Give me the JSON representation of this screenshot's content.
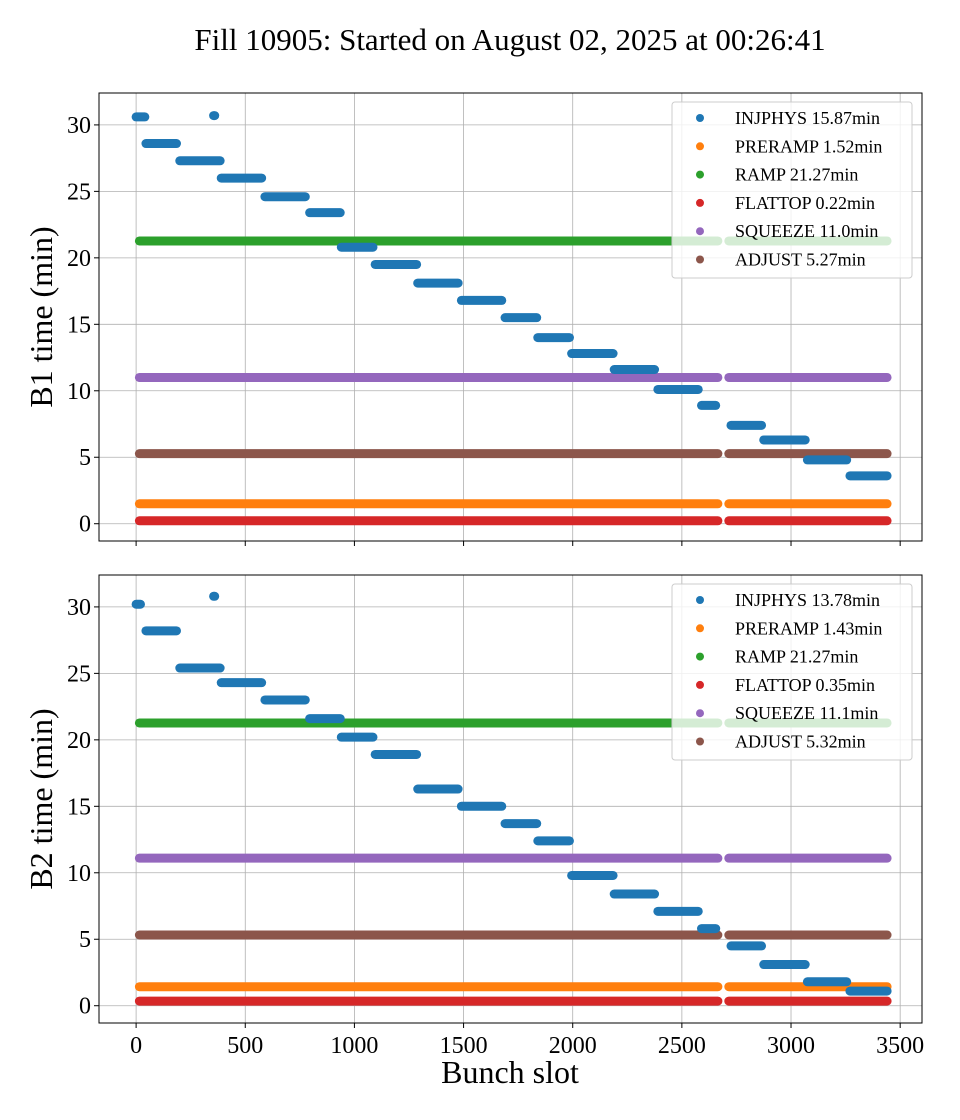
{
  "figure": {
    "title": "Fill 10905: Started on August 02, 2025 at 00:26:41",
    "xlabel": "Bunch slot"
  },
  "colors": {
    "INJPHYS": "#1f77b4",
    "PRERAMP": "#ff7f0e",
    "RAMP": "#2ca02c",
    "FLATTOP": "#d62728",
    "SQUEEZE": "#9467bd",
    "ADJUST": "#8c564b"
  },
  "chart_data": [
    {
      "type": "scatter",
      "ylabel": "B1 time (min)",
      "xlim": [
        -170,
        3600
      ],
      "ylim": [
        -1.3,
        32.4
      ],
      "xticks": [
        0,
        500,
        1000,
        1500,
        2000,
        2500,
        3000,
        3500
      ],
      "yticks": [
        0,
        5,
        10,
        15,
        20,
        25,
        30
      ],
      "grid": true,
      "legend_position": "top-right",
      "gaps": [
        [
          2665,
          2715
        ]
      ],
      "series": [
        {
          "name": "INJPHYS 15.87min",
          "key": "INJPHYS",
          "segments": [
            {
              "x0": 0,
              "x1": 40,
              "y": 30.6
            },
            {
              "x0": 355,
              "x1": 360,
              "y": 30.7
            },
            {
              "x0": 45,
              "x1": 185,
              "y": 28.6
            },
            {
              "x0": 200,
              "x1": 385,
              "y": 27.3
            },
            {
              "x0": 390,
              "x1": 575,
              "y": 26.0
            },
            {
              "x0": 590,
              "x1": 775,
              "y": 24.6
            },
            {
              "x0": 795,
              "x1": 935,
              "y": 23.4
            },
            {
              "x0": 940,
              "x1": 1085,
              "y": 20.8
            },
            {
              "x0": 1095,
              "x1": 1285,
              "y": 19.5
            },
            {
              "x0": 1290,
              "x1": 1475,
              "y": 18.1
            },
            {
              "x0": 1490,
              "x1": 1675,
              "y": 16.8
            },
            {
              "x0": 1690,
              "x1": 1835,
              "y": 15.5
            },
            {
              "x0": 1840,
              "x1": 1985,
              "y": 14.0
            },
            {
              "x0": 1995,
              "x1": 2185,
              "y": 12.8
            },
            {
              "x0": 2190,
              "x1": 2375,
              "y": 11.6
            },
            {
              "x0": 2390,
              "x1": 2575,
              "y": 10.1
            },
            {
              "x0": 2590,
              "x1": 2655,
              "y": 8.9
            },
            {
              "x0": 2725,
              "x1": 2865,
              "y": 7.4
            },
            {
              "x0": 2875,
              "x1": 3065,
              "y": 6.3
            },
            {
              "x0": 3075,
              "x1": 3255,
              "y": 4.8
            },
            {
              "x0": 3270,
              "x1": 3440,
              "y": 3.6
            }
          ]
        },
        {
          "name": "PRERAMP 1.52min",
          "key": "PRERAMP",
          "y": 1.5
        },
        {
          "name": "RAMP 21.27min",
          "key": "RAMP",
          "y": 21.27
        },
        {
          "name": "FLATTOP 0.22min",
          "key": "FLATTOP",
          "y": 0.22
        },
        {
          "name": "SQUEEZE 11.0min",
          "key": "SQUEEZE",
          "y": 11.0
        },
        {
          "name": "ADJUST 5.27min",
          "key": "ADJUST",
          "y": 5.27
        }
      ]
    },
    {
      "type": "scatter",
      "ylabel": "B2 time (min)",
      "xlim": [
        -170,
        3600
      ],
      "ylim": [
        -1.3,
        32.4
      ],
      "xticks": [
        0,
        500,
        1000,
        1500,
        2000,
        2500,
        3000,
        3500
      ],
      "xticklabels": [
        "0",
        "500",
        "1000",
        "1500",
        "2000",
        "2500",
        "3000",
        "3500"
      ],
      "yticks": [
        0,
        5,
        10,
        15,
        20,
        25,
        30
      ],
      "grid": true,
      "legend_position": "top-right",
      "gaps": [
        [
          2665,
          2715
        ]
      ],
      "series": [
        {
          "name": "INJPHYS 13.78min",
          "key": "INJPHYS",
          "segments": [
            {
              "x0": 0,
              "x1": 20,
              "y": 30.2
            },
            {
              "x0": 355,
              "x1": 360,
              "y": 30.8
            },
            {
              "x0": 45,
              "x1": 185,
              "y": 28.2
            },
            {
              "x0": 200,
              "x1": 385,
              "y": 25.4
            },
            {
              "x0": 390,
              "x1": 575,
              "y": 24.3
            },
            {
              "x0": 590,
              "x1": 775,
              "y": 23.0
            },
            {
              "x0": 795,
              "x1": 935,
              "y": 21.6
            },
            {
              "x0": 940,
              "x1": 1085,
              "y": 20.2
            },
            {
              "x0": 1095,
              "x1": 1285,
              "y": 18.9
            },
            {
              "x0": 1290,
              "x1": 1475,
              "y": 16.3
            },
            {
              "x0": 1490,
              "x1": 1675,
              "y": 15.0
            },
            {
              "x0": 1690,
              "x1": 1835,
              "y": 13.7
            },
            {
              "x0": 1840,
              "x1": 1985,
              "y": 12.4
            },
            {
              "x0": 1995,
              "x1": 2185,
              "y": 9.8
            },
            {
              "x0": 2190,
              "x1": 2375,
              "y": 8.4
            },
            {
              "x0": 2390,
              "x1": 2575,
              "y": 7.1
            },
            {
              "x0": 2590,
              "x1": 2655,
              "y": 5.8
            },
            {
              "x0": 2725,
              "x1": 2865,
              "y": 4.5
            },
            {
              "x0": 2875,
              "x1": 3065,
              "y": 3.1
            },
            {
              "x0": 3075,
              "x1": 3255,
              "y": 1.8
            },
            {
              "x0": 3270,
              "x1": 3440,
              "y": 1.1
            }
          ]
        },
        {
          "name": "PRERAMP 1.43min",
          "key": "PRERAMP",
          "y": 1.43
        },
        {
          "name": "RAMP 21.27min",
          "key": "RAMP",
          "y": 21.27
        },
        {
          "name": "FLATTOP 0.35min",
          "key": "FLATTOP",
          "y": 0.35
        },
        {
          "name": "SQUEEZE 11.1min",
          "key": "SQUEEZE",
          "y": 11.1
        },
        {
          "name": "ADJUST 5.32min",
          "key": "ADJUST",
          "y": 5.32
        }
      ]
    }
  ]
}
